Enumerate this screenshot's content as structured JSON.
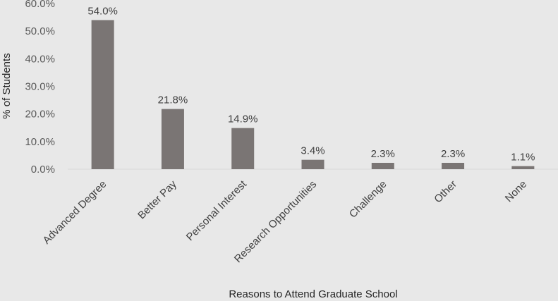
{
  "chart_data": {
    "type": "bar",
    "categories": [
      "Advanced Degree",
      "Better Pay",
      "Personal Interest",
      "Research Opportunities",
      "Challenge",
      "Other",
      "None"
    ],
    "values": [
      54.0,
      21.8,
      14.9,
      3.4,
      2.3,
      2.3,
      1.1
    ],
    "data_labels": [
      "54.0%",
      "21.8%",
      "14.9%",
      "3.4%",
      "2.3%",
      "2.3%",
      "1.1%"
    ],
    "yticks": [
      0,
      10,
      20,
      30,
      40,
      50,
      60
    ],
    "ytick_labels": [
      "0.0%",
      "10.0%",
      "20.0%",
      "30.0%",
      "40.0%",
      "50.0%",
      "60.0%"
    ],
    "ylim": [
      0,
      60
    ],
    "xlabel": "Reasons to Attend Graduate School",
    "ylabel": "% of Students",
    "grid": false,
    "bar_color": "#7a7574"
  }
}
